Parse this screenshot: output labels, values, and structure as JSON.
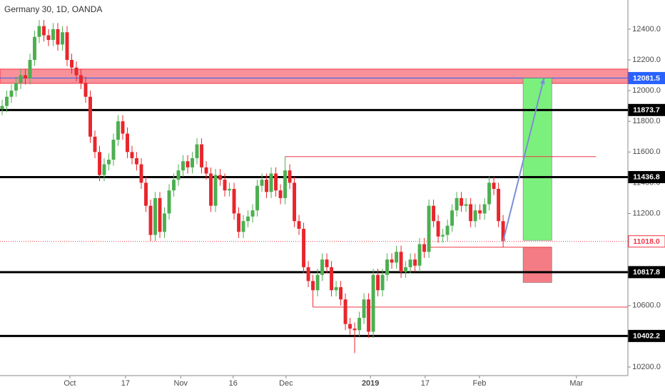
{
  "chart_data": {
    "type": "candlestick",
    "title": "Germany 30, 1D, OANDA",
    "up_color": "#4caf50",
    "down_color": "#e8262c",
    "open": [
      11880,
      11900,
      11960,
      12000,
      12050,
      12100,
      12080,
      12200,
      12350,
      12420,
      12360,
      12330,
      12400,
      12300,
      12380,
      12200,
      12150,
      12100,
      12050,
      11960,
      11700,
      11600,
      11450,
      11520,
      11550,
      11680,
      11800,
      11720,
      11600,
      11560,
      11520,
      11400,
      11250,
      11060,
      11300,
      11080,
      11200,
      11350,
      11420,
      11480,
      11540,
      11500,
      11560,
      11650,
      11500,
      11460,
      11250,
      11450,
      11420,
      11350,
      11360,
      11200,
      11080,
      11150,
      11180,
      11220,
      11380,
      11420,
      11340,
      11460,
      11350,
      11300,
      11480,
      11400,
      11150,
      11100,
      10850,
      10760,
      10700,
      10800,
      10900,
      10850,
      10700,
      10720,
      10640,
      10480,
      10450,
      10440,
      10520,
      10640,
      10430,
      10800,
      10700,
      10800,
      10900,
      10880,
      10950,
      10820,
      10850,
      10900,
      10860,
      11000,
      10950,
      11250,
      11150,
      11050,
      11060,
      11120,
      11220,
      11300,
      11250,
      11260,
      11150,
      11220,
      11200,
      11260,
      11400,
      11360,
      11150
    ],
    "high": [
      11940,
      12000,
      12040,
      12090,
      12140,
      12140,
      12240,
      12390,
      12460,
      12460,
      12400,
      12440,
      12440,
      12420,
      12420,
      12240,
      12190,
      12140,
      12090,
      12000,
      11740,
      11640,
      11560,
      11590,
      11720,
      11840,
      11840,
      11760,
      11640,
      11600,
      11560,
      11440,
      11290,
      11340,
      11340,
      11240,
      11390,
      11460,
      11520,
      11580,
      11580,
      11600,
      11690,
      11690,
      11540,
      11500,
      11490,
      11490,
      11460,
      11400,
      11400,
      11240,
      11190,
      11220,
      11260,
      11420,
      11460,
      11460,
      11500,
      11500,
      11390,
      11570,
      11520,
      11440,
      11190,
      11140,
      10890,
      10800,
      10840,
      10940,
      10940,
      10890,
      10760,
      10760,
      10680,
      10520,
      10490,
      10560,
      10680,
      10680,
      10840,
      10840,
      10840,
      10940,
      10940,
      10990,
      10990,
      10890,
      10940,
      10940,
      11040,
      11040,
      11290,
      11290,
      11190,
      11100,
      11160,
      11260,
      11340,
      11340,
      11300,
      11300,
      11260,
      11260,
      11300,
      11440,
      11440,
      11400,
      11190
    ],
    "low": [
      11840,
      11860,
      11920,
      11960,
      12010,
      12040,
      12040,
      12160,
      12310,
      12320,
      12290,
      12290,
      12260,
      12260,
      12160,
      12110,
      12060,
      12010,
      11920,
      11660,
      11560,
      11410,
      11410,
      11480,
      11510,
      11640,
      11680,
      11560,
      11520,
      11480,
      11360,
      11210,
      11020,
      11020,
      11040,
      11040,
      11160,
      11310,
      11380,
      11440,
      11460,
      11460,
      11520,
      11460,
      11420,
      11210,
      11210,
      11380,
      11310,
      11310,
      11160,
      11040,
      11040,
      11110,
      11140,
      11180,
      11340,
      11300,
      11300,
      11310,
      11260,
      11260,
      11360,
      11110,
      11060,
      10810,
      10720,
      10590,
      10660,
      10760,
      10810,
      10660,
      10660,
      10600,
      10440,
      10410,
      10290,
      10400,
      10480,
      10390,
      10390,
      10660,
      10660,
      10760,
      10840,
      10840,
      10780,
      10780,
      10810,
      10820,
      10820,
      10910,
      10910,
      11110,
      11010,
      11010,
      11020,
      11080,
      11180,
      11210,
      11210,
      11110,
      11110,
      11160,
      11160,
      11220,
      11320,
      11110,
      10980
    ],
    "close": [
      11900,
      11960,
      12000,
      12050,
      12100,
      12080,
      12200,
      12350,
      12420,
      12360,
      12330,
      12400,
      12300,
      12380,
      12200,
      12150,
      12100,
      12050,
      11960,
      11700,
      11600,
      11450,
      11520,
      11550,
      11680,
      11800,
      11720,
      11600,
      11560,
      11520,
      11400,
      11250,
      11060,
      11300,
      11080,
      11200,
      11350,
      11420,
      11480,
      11540,
      11500,
      11560,
      11650,
      11500,
      11460,
      11250,
      11450,
      11420,
      11350,
      11360,
      11200,
      11080,
      11150,
      11180,
      11220,
      11380,
      11420,
      11340,
      11460,
      11350,
      11300,
      11480,
      11400,
      11150,
      11100,
      10850,
      10760,
      10700,
      10800,
      10900,
      10850,
      10700,
      10720,
      10640,
      10480,
      10450,
      10440,
      10520,
      10640,
      10430,
      10800,
      10700,
      10800,
      10900,
      10880,
      10950,
      10820,
      10850,
      10900,
      10860,
      11000,
      10950,
      11250,
      11150,
      11050,
      11060,
      11120,
      11220,
      11300,
      11250,
      11260,
      11150,
      11220,
      11200,
      11260,
      11400,
      11360,
      11150,
      11020
    ],
    "xlim": [
      -0.46,
      134.9
    ],
    "ylim": [
      10144,
      12590
    ],
    "xticks": [
      {
        "value": 14.6,
        "label": "Oct"
      },
      {
        "value": 26.6,
        "label": "17"
      },
      {
        "value": 38.5,
        "label": "Nov"
      },
      {
        "value": 49.8,
        "label": "16"
      },
      {
        "value": 61.2,
        "label": "Dec"
      },
      {
        "value": 79.4,
        "label": "2019"
      },
      {
        "value": 91.2,
        "label": "17"
      },
      {
        "value": 102.9,
        "label": "Feb"
      },
      {
        "value": 123.8,
        "label": "Mar"
      }
    ],
    "yticks": [
      {
        "value": 10200,
        "label": "10200.0"
      },
      {
        "value": 10400,
        "label": "10400.0"
      },
      {
        "value": 10600,
        "label": "10600.0"
      },
      {
        "value": 10800,
        "label": "10800.0"
      },
      {
        "value": 11000,
        "label": "11000.0"
      },
      {
        "value": 11200,
        "label": "11200.0"
      },
      {
        "value": 11400,
        "label": "11400.0"
      },
      {
        "value": 11600,
        "label": "11600.0"
      },
      {
        "value": 11800,
        "label": "11800.0"
      },
      {
        "value": 12000,
        "label": "12000.0"
      },
      {
        "value": 12200,
        "label": "12200.0"
      },
      {
        "value": 12400,
        "label": "12400.0"
      }
    ],
    "levels": [
      11873.7,
      11436.8,
      10817.8,
      10402.2
    ],
    "level_color": "#000000",
    "zone": {
      "from": 12047,
      "to": 12140,
      "color": "#f23645",
      "line": 12081.5,
      "line_color": "#2962ff"
    },
    "current_price": {
      "value": 11018,
      "label": "11018.0",
      "color": "#f23645"
    },
    "lines": [
      {
        "value": 11570,
        "from": 61,
        "to": 128
      },
      {
        "value": 10590,
        "from": 67,
        "to": 134.9
      },
      {
        "value": 10980,
        "from": 92,
        "to": 118.5
      }
    ],
    "boxes": [
      {
        "from": 112.3,
        "to": 118.5,
        "low": 11025,
        "high": 12081.5,
        "color": "#7cf07c"
      },
      {
        "from": 112.3,
        "to": 118.5,
        "low": 10750,
        "high": 10980,
        "color": "#f47c84"
      }
    ],
    "arrow": {
      "x": [
        108,
        116.8
      ],
      "y": [
        11020,
        12081.5
      ],
      "color": "#7b8fd6"
    }
  }
}
